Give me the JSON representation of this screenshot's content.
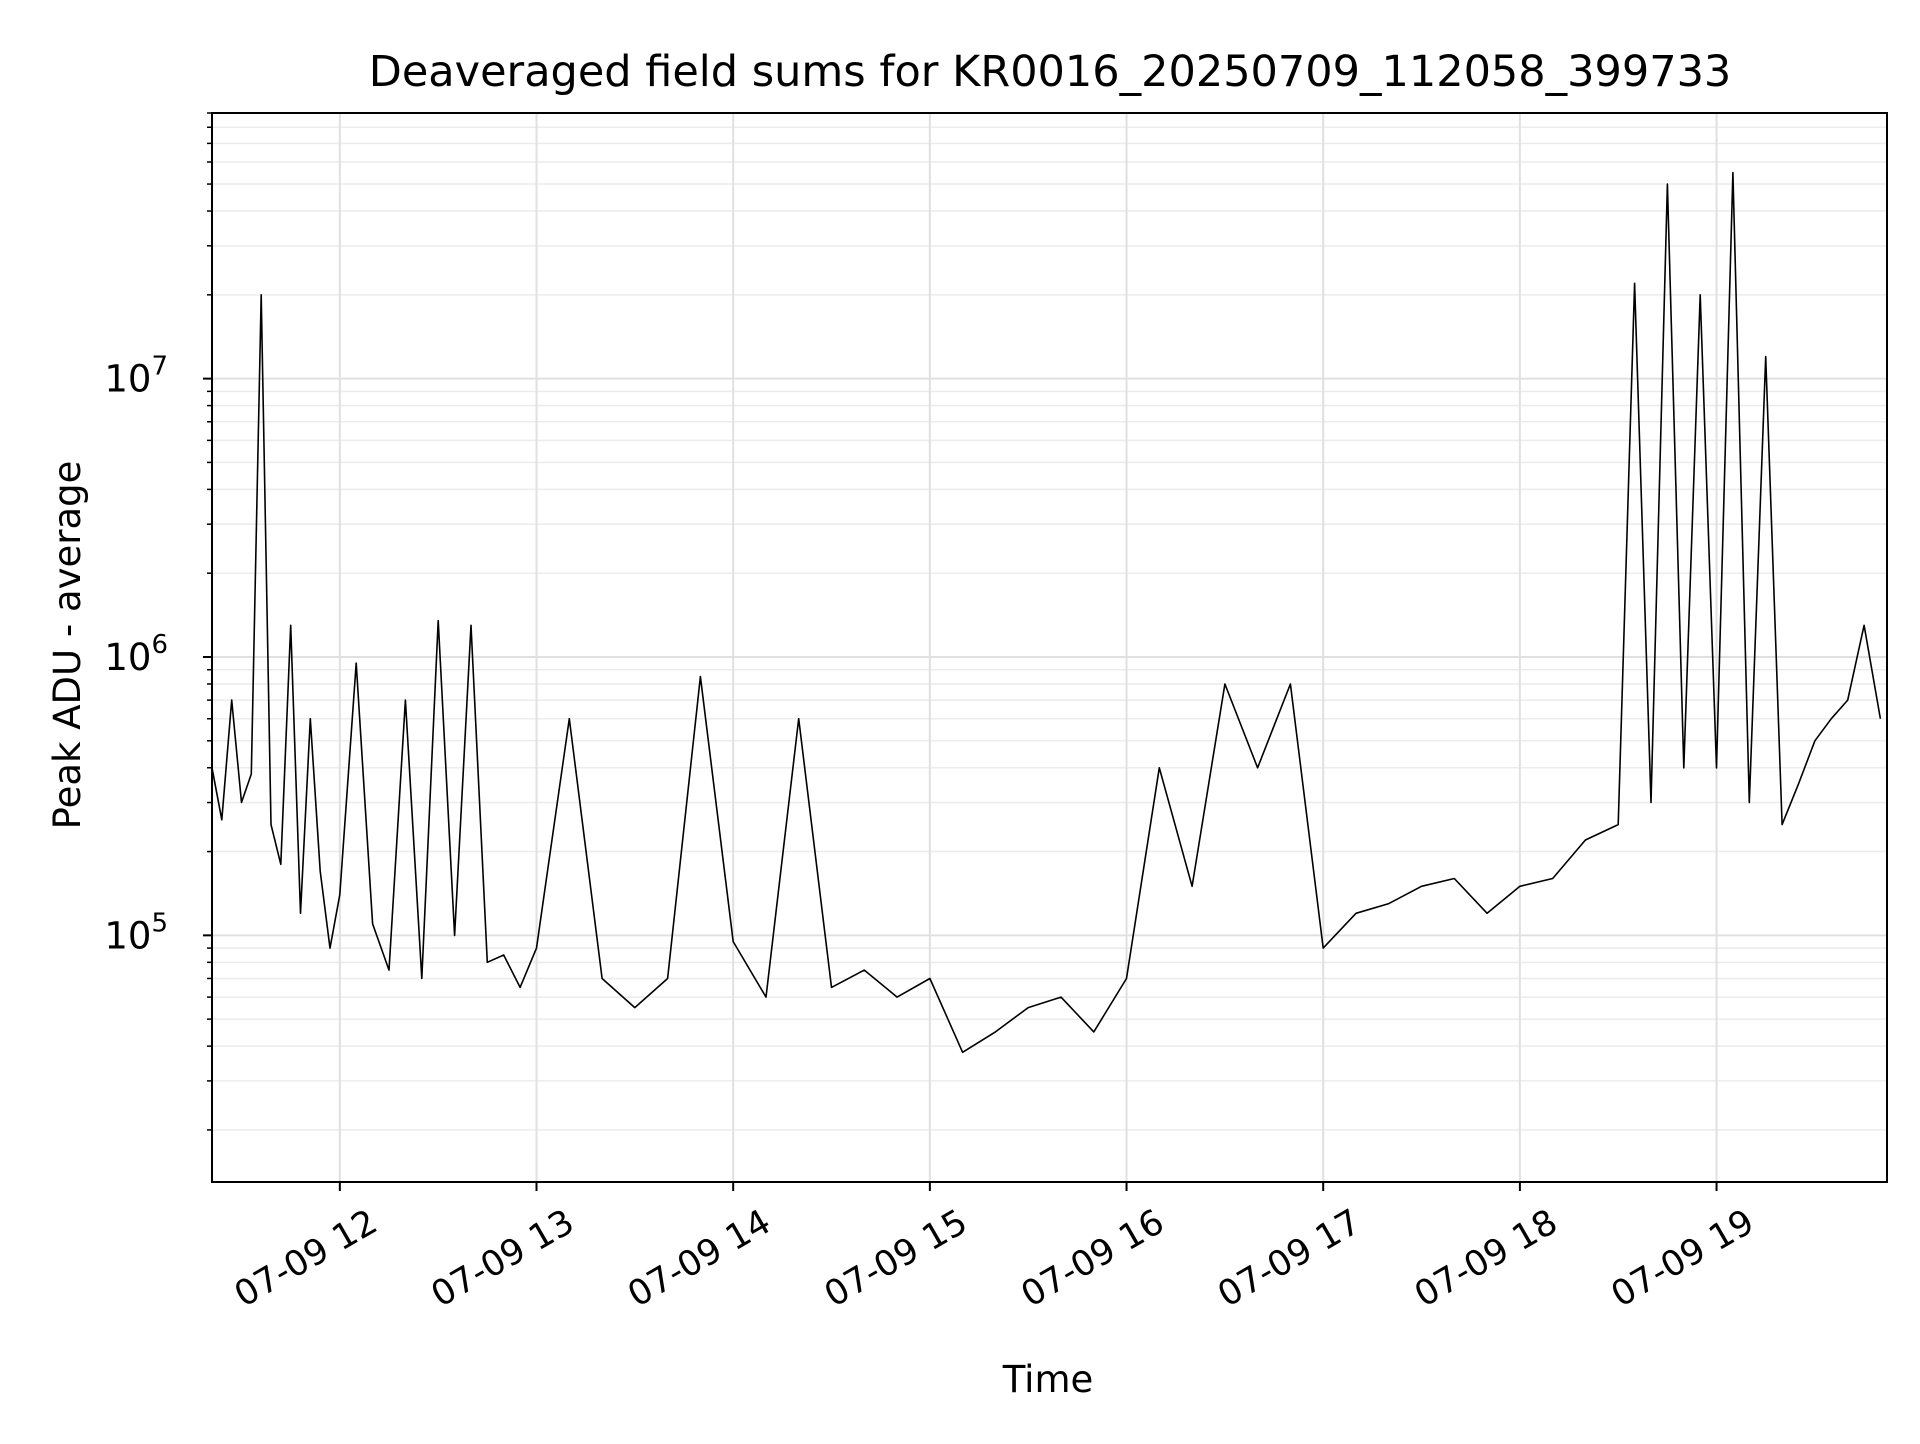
{
  "chart_data": {
    "type": "line",
    "title": "Deaveraged field sums for KR0016_20250709_112058_399733",
    "xlabel": "Time",
    "ylabel": "Peak ADU - average",
    "yscale": "log",
    "ylim": [
      13000,
      90000000
    ],
    "xlim": [
      "2025-07-09 11:21",
      "2025-07-09 19:52"
    ],
    "grid": "both",
    "line_color": "#000000",
    "x_ticks": [
      "2025-07-09 12:00",
      "2025-07-09 13:00",
      "2025-07-09 14:00",
      "2025-07-09 15:00",
      "2025-07-09 16:00",
      "2025-07-09 17:00",
      "2025-07-09 18:00",
      "2025-07-09 19:00"
    ],
    "x_tick_labels": [
      "07-09 12",
      "07-09 13",
      "07-09 14",
      "07-09 15",
      "07-09 16",
      "07-09 17",
      "07-09 18",
      "07-09 19"
    ],
    "y_tick_labels": [
      {
        "value": 100000,
        "base": "10",
        "exp": "5"
      },
      {
        "value": 1000000,
        "base": "10",
        "exp": "6"
      },
      {
        "value": 10000000,
        "base": "10",
        "exp": "7"
      }
    ],
    "series": [
      {
        "x": [
          "2025-07-09 11:21",
          "2025-07-09 11:24",
          "2025-07-09 11:27",
          "2025-07-09 11:30",
          "2025-07-09 11:33",
          "2025-07-09 11:36",
          "2025-07-09 11:39",
          "2025-07-09 11:42",
          "2025-07-09 11:45",
          "2025-07-09 11:48",
          "2025-07-09 11:51",
          "2025-07-09 11:54",
          "2025-07-09 11:57",
          "2025-07-09 12:00",
          "2025-07-09 12:05",
          "2025-07-09 12:10",
          "2025-07-09 12:15",
          "2025-07-09 12:20",
          "2025-07-09 12:25",
          "2025-07-09 12:30",
          "2025-07-09 12:35",
          "2025-07-09 12:40",
          "2025-07-09 12:45",
          "2025-07-09 12:50",
          "2025-07-09 12:55",
          "2025-07-09 13:00",
          "2025-07-09 13:10",
          "2025-07-09 13:20",
          "2025-07-09 13:30",
          "2025-07-09 13:40",
          "2025-07-09 13:50",
          "2025-07-09 14:00",
          "2025-07-09 14:10",
          "2025-07-09 14:20",
          "2025-07-09 14:30",
          "2025-07-09 14:40",
          "2025-07-09 14:50",
          "2025-07-09 15:00",
          "2025-07-09 15:10",
          "2025-07-09 15:20",
          "2025-07-09 15:30",
          "2025-07-09 15:40",
          "2025-07-09 15:50",
          "2025-07-09 16:00",
          "2025-07-09 16:10",
          "2025-07-09 16:20",
          "2025-07-09 16:30",
          "2025-07-09 16:40",
          "2025-07-09 16:50",
          "2025-07-09 17:00",
          "2025-07-09 17:10",
          "2025-07-09 17:20",
          "2025-07-09 17:30",
          "2025-07-09 17:40",
          "2025-07-09 17:50",
          "2025-07-09 18:00",
          "2025-07-09 18:10",
          "2025-07-09 18:20",
          "2025-07-09 18:30",
          "2025-07-09 18:35",
          "2025-07-09 18:40",
          "2025-07-09 18:45",
          "2025-07-09 18:50",
          "2025-07-09 18:55",
          "2025-07-09 19:00",
          "2025-07-09 19:05",
          "2025-07-09 19:10",
          "2025-07-09 19:15",
          "2025-07-09 19:20",
          "2025-07-09 19:25",
          "2025-07-09 19:30",
          "2025-07-09 19:35",
          "2025-07-09 19:40",
          "2025-07-09 19:45",
          "2025-07-09 19:50"
        ],
        "y": [
          400000,
          260000,
          700000,
          300000,
          380000,
          20000000,
          250000,
          180000,
          1300000,
          120000,
          600000,
          170000,
          90000,
          140000,
          950000,
          110000,
          75000,
          700000,
          70000,
          1350000,
          100000,
          1300000,
          80000,
          85000,
          65000,
          90000,
          600000,
          70000,
          55000,
          70000,
          850000,
          95000,
          60000,
          600000,
          65000,
          75000,
          60000,
          70000,
          38000,
          45000,
          55000,
          60000,
          45000,
          70000,
          400000,
          150000,
          800000,
          400000,
          800000,
          90000,
          120000,
          130000,
          150000,
          160000,
          120000,
          150000,
          160000,
          220000,
          250000,
          22000000,
          300000,
          50000000,
          400000,
          20000000,
          400000,
          55000000,
          300000,
          12000000,
          250000,
          350000,
          500000,
          600000,
          700000,
          1300000,
          600000
        ]
      }
    ]
  }
}
